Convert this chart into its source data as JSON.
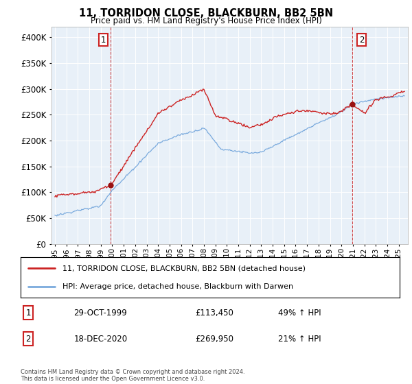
{
  "title": "11, TORRIDON CLOSE, BLACKBURN, BB2 5BN",
  "subtitle": "Price paid vs. HM Land Registry's House Price Index (HPI)",
  "legend_line1": "11, TORRIDON CLOSE, BLACKBURN, BB2 5BN (detached house)",
  "legend_line2": "HPI: Average price, detached house, Blackburn with Darwen",
  "sale1_date": "29-OCT-1999",
  "sale1_price": "£113,450",
  "sale1_hpi": "49% ↑ HPI",
  "sale1_year": 1999.83,
  "sale1_val": 113450,
  "sale2_date": "18-DEC-2020",
  "sale2_price": "£269,950",
  "sale2_hpi": "21% ↑ HPI",
  "sale2_year": 2020.96,
  "sale2_val": 269950,
  "footer": "Contains HM Land Registry data © Crown copyright and database right 2024.\nThis data is licensed under the Open Government Licence v3.0.",
  "hpi_color": "#7aaadd",
  "price_color": "#cc2222",
  "marker_color": "#991111",
  "bg_color": "#ffffff",
  "plot_bg": "#e8f0f8",
  "grid_color": "#ffffff",
  "ylim": [
    0,
    420000
  ],
  "yticks": [
    0,
    50000,
    100000,
    150000,
    200000,
    250000,
    300000,
    350000,
    400000
  ],
  "xlim_start": 1994.7,
  "xlim_end": 2025.8
}
